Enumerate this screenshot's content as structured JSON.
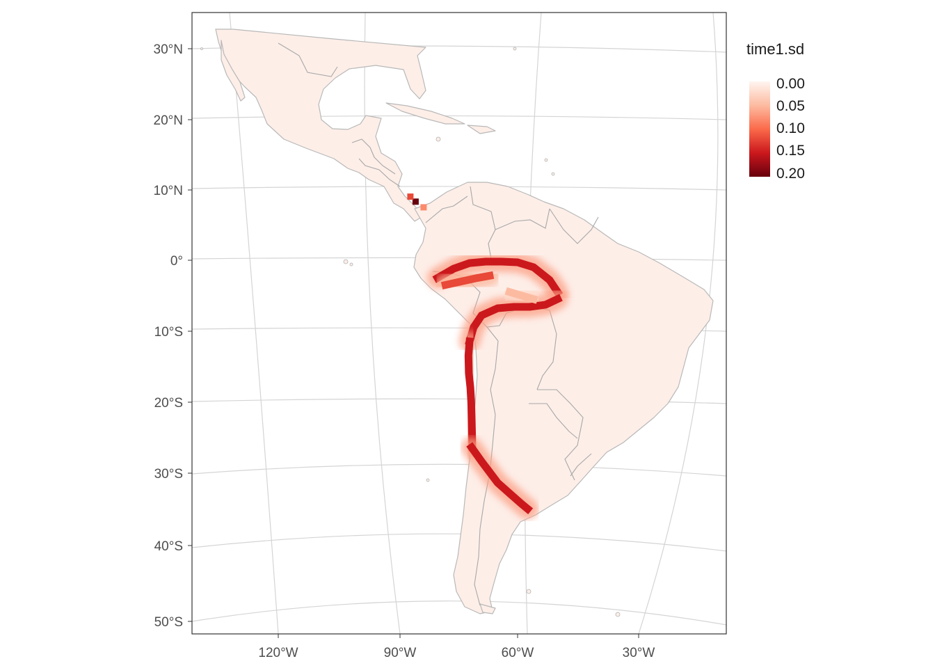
{
  "legend": {
    "title": "time1.sd",
    "ticks": [
      "0.00",
      "0.05",
      "0.10",
      "0.15",
      "0.20"
    ],
    "colors": [
      "#fff5f0",
      "#fcbba1",
      "#fb6a4a",
      "#cb181d",
      "#67000d"
    ]
  },
  "axes": {
    "y_labels": [
      "30°N",
      "20°N",
      "10°N",
      "0°",
      "10°S",
      "20°S",
      "30°S",
      "40°S",
      "50°S"
    ],
    "x_labels": [
      "120°W",
      "90°W",
      "60°W",
      "30°W"
    ]
  },
  "colors": {
    "land_fill": "#fdeee8",
    "country_border": "#a8a8a8",
    "graticule": "#d4d4d4",
    "panel_border": "#333333"
  },
  "map_data": {
    "variable": "time1.sd",
    "range": [
      0,
      0.2
    ],
    "hotspots": [
      {
        "lon": -85.5,
        "lat": 8.3,
        "value": 0.2
      },
      {
        "lon": -86.8,
        "lat": 9.0,
        "value": 0.12
      },
      {
        "lon": -83.5,
        "lat": 7.5,
        "value": 0.08
      }
    ],
    "bands": [
      {
        "lon": [
          -80,
          -76,
          -72,
          -68,
          -64,
          -60,
          -56,
          -52,
          -50
        ],
        "lat": [
          -2.5,
          -1.2,
          -0.4,
          -0.2,
          -0.2,
          -0.3,
          -1.0,
          -2.8,
          -4.5
        ],
        "value": 0.15
      },
      {
        "lon": [
          -78,
          -74,
          -70,
          -67
        ],
        "lat": [
          -3.5,
          -3.0,
          -2.5,
          -2.2
        ],
        "value": 0.12
      },
      {
        "lon": [
          -50,
          -53,
          -57,
          -61,
          -65,
          -69,
          -71,
          -72
        ],
        "lat": [
          -5.5,
          -6.3,
          -6.6,
          -6.6,
          -6.8,
          -7.8,
          -9.5,
          -11.5
        ],
        "value": 0.15
      },
      {
        "lon": [
          -62,
          -59,
          -56
        ],
        "lat": [
          -4.5,
          -5.0,
          -5.5
        ],
        "value": 0.05
      },
      {
        "lon": [
          -72,
          -72.3,
          -72.2,
          -71.8,
          -71.6,
          -71.5,
          -71.4,
          -71.3
        ],
        "lat": [
          -11.5,
          -13.5,
          -16,
          -18,
          -20,
          -22,
          -24,
          -26.5
        ],
        "value": 0.15
      },
      {
        "lon": [
          -71.5,
          -69,
          -67,
          -65,
          -62,
          -59,
          -57.5
        ],
        "lat": [
          -26.5,
          -28.5,
          -30,
          -31.5,
          -33,
          -34.5,
          -35.2
        ],
        "value": 0.15
      }
    ]
  }
}
